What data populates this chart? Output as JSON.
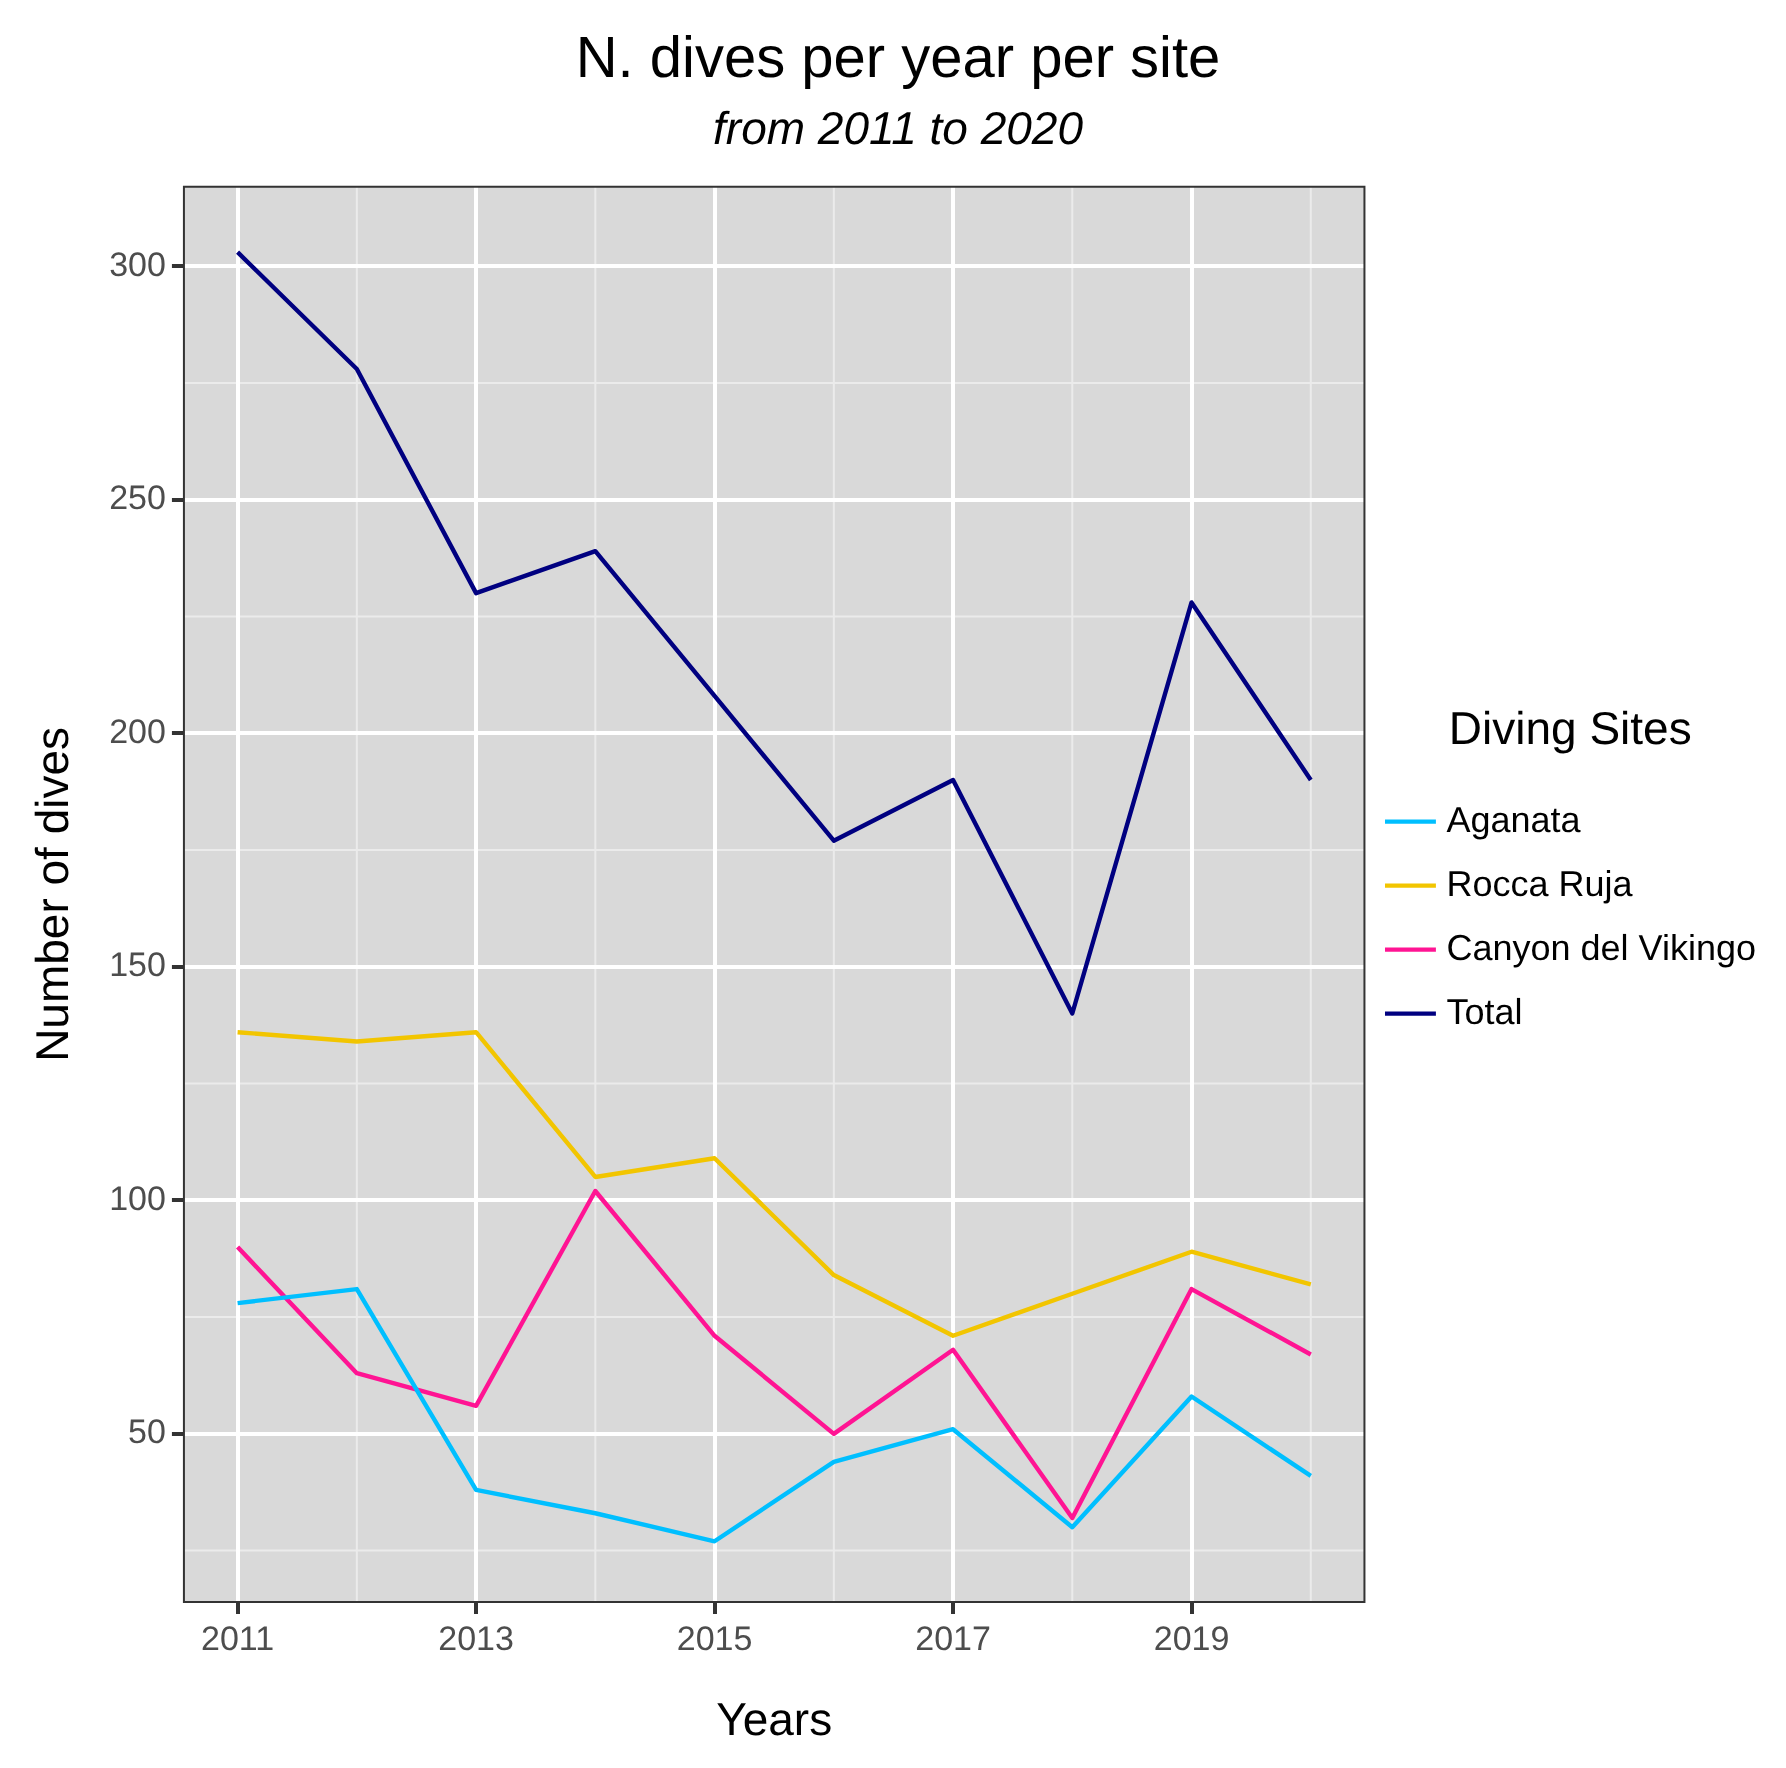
{
  "chart_data": {
    "type": "line",
    "title": "N. dives per year per site",
    "subtitle": "from 2011 to 2020",
    "xlabel": "Years",
    "ylabel": "Number of dives",
    "legend_title": "Diving Sites",
    "x": [
      2011,
      2012,
      2013,
      2014,
      2015,
      2016,
      2017,
      2018,
      2019,
      2020
    ],
    "series": [
      {
        "name": "Aganata",
        "color": "#00bfff",
        "values": [
          78,
          81,
          38,
          33,
          27,
          44,
          51,
          30,
          58,
          41
        ]
      },
      {
        "name": "Rocca Ruja",
        "color": "#f2c500",
        "values": [
          136,
          134,
          136,
          105,
          109,
          84,
          71,
          80,
          89,
          82
        ]
      },
      {
        "name": "Canyon del Vikingo",
        "color": "#ff1493",
        "values": [
          90,
          63,
          56,
          102,
          71,
          50,
          68,
          32,
          81,
          67
        ]
      },
      {
        "name": "Total",
        "color": "#000080",
        "values": [
          303,
          278,
          230,
          239,
          208,
          177,
          190,
          140,
          228,
          190
        ]
      }
    ],
    "xlim": [
      2010.55,
      2020.45
    ],
    "xticks": [
      2011,
      2013,
      2015,
      2017,
      2019
    ],
    "ylim": [
      14,
      317
    ],
    "yticks": [
      50,
      100,
      150,
      200,
      250,
      300
    ],
    "grid": true,
    "legend": "right",
    "marker": "none",
    "line_style": "solid"
  }
}
